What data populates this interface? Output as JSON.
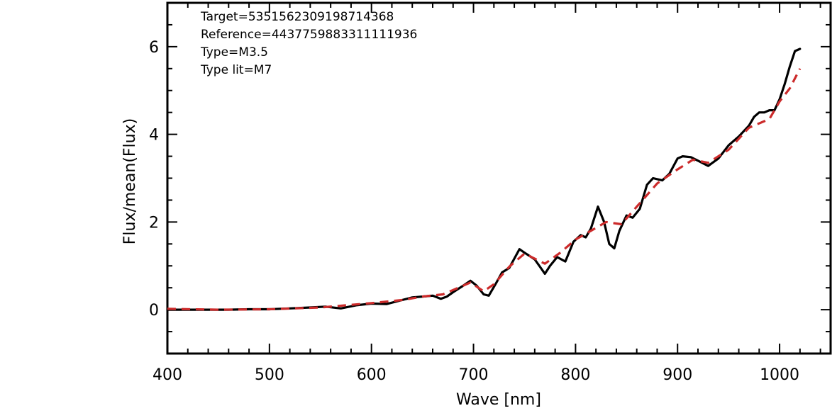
{
  "chart_data": {
    "type": "line",
    "xlabel": "Wave [nm]",
    "ylabel": "Flux/mean(Flux)",
    "xlim": [
      400,
      1050
    ],
    "ylim": [
      -1,
      7
    ],
    "x_ticks": [
      400,
      500,
      600,
      700,
      800,
      900,
      1000
    ],
    "y_ticks": [
      0,
      2,
      4,
      6
    ],
    "annotations": [
      "Target=5351562309198714368",
      "Reference=4437759883311111936",
      "Type=M3.5",
      "Type lit=M7"
    ],
    "grid": false,
    "colors": {
      "series1": "#000000",
      "series2": "#cc2b2b"
    },
    "series": [
      {
        "line_style": "solid",
        "x": [
          400,
          420,
          440,
          460,
          480,
          500,
          520,
          540,
          555,
          570,
          585,
          600,
          615,
          630,
          640,
          650,
          660,
          668,
          674,
          680,
          690,
          697,
          703,
          710,
          715,
          722,
          728,
          735,
          745,
          750,
          760,
          770,
          775,
          782,
          790,
          798,
          805,
          810,
          815,
          822,
          828,
          833,
          838,
          843,
          850,
          856,
          863,
          870,
          876,
          885,
          892,
          900,
          905,
          913,
          920,
          930,
          940,
          950,
          960,
          970,
          975,
          980,
          985,
          990,
          995,
          1000,
          1005,
          1010,
          1015,
          1020
        ],
        "y": [
          0.0,
          0.0,
          0.0,
          0.0,
          0.01,
          0.01,
          0.03,
          0.05,
          0.07,
          0.03,
          0.1,
          0.14,
          0.13,
          0.22,
          0.28,
          0.3,
          0.32,
          0.25,
          0.3,
          0.4,
          0.55,
          0.66,
          0.55,
          0.35,
          0.32,
          0.6,
          0.85,
          0.95,
          1.38,
          1.3,
          1.15,
          0.82,
          1.0,
          1.2,
          1.1,
          1.55,
          1.7,
          1.65,
          1.85,
          2.35,
          2.0,
          1.5,
          1.4,
          1.8,
          2.15,
          2.1,
          2.3,
          2.85,
          3.0,
          2.95,
          3.1,
          3.45,
          3.5,
          3.48,
          3.4,
          3.28,
          3.45,
          3.75,
          3.95,
          4.2,
          4.4,
          4.5,
          4.5,
          4.55,
          4.55,
          4.8,
          5.15,
          5.55,
          5.9,
          5.95
        ]
      },
      {
        "line_style": "dashed",
        "x": [
          400,
          450,
          500,
          550,
          600,
          630,
          650,
          670,
          685,
          697,
          710,
          720,
          735,
          750,
          770,
          785,
          800,
          815,
          830,
          845,
          860,
          880,
          900,
          915,
          930,
          950,
          970,
          990,
          1000,
          1010,
          1020
        ],
        "y": [
          0.02,
          0.0,
          0.01,
          0.05,
          0.15,
          0.22,
          0.3,
          0.35,
          0.5,
          0.62,
          0.42,
          0.58,
          0.98,
          1.28,
          1.05,
          1.3,
          1.6,
          1.8,
          2.0,
          1.95,
          2.35,
          2.88,
          3.2,
          3.42,
          3.35,
          3.65,
          4.15,
          4.35,
          4.75,
          5.05,
          5.5
        ]
      }
    ]
  }
}
